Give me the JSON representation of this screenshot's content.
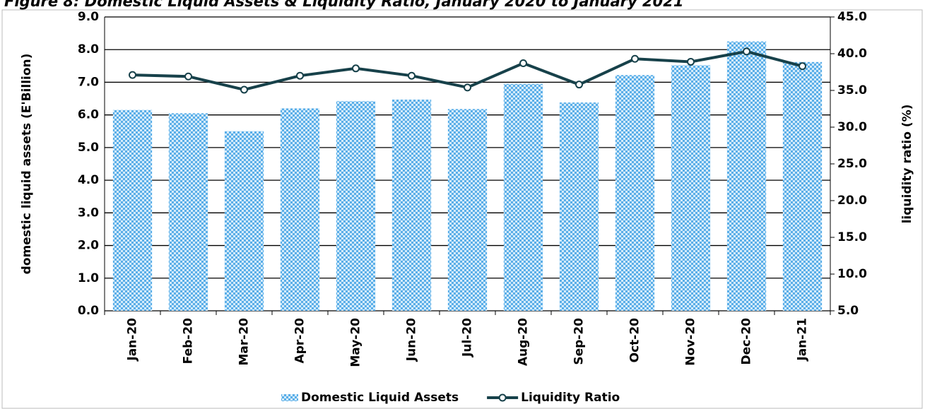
{
  "chart_data": {
    "type": "bar_line",
    "title": "Figure 8: Domestic Liquid Assets & Liquidity Ratio, January 2020 to January 2021",
    "categories": [
      "Jan-20",
      "Feb-20",
      "Mar-20",
      "Apr-20",
      "May-20",
      "Jun-20",
      "Jul-20",
      "Aug-20",
      "Sep-20",
      "Oct-20",
      "Nov-20",
      "Dec-20",
      "Jan-21"
    ],
    "series": [
      {
        "name": "Domestic Liquid Assets",
        "color": "#5aaee8",
        "kind": "bar",
        "values": [
          6.15,
          6.05,
          5.5,
          6.2,
          6.42,
          6.47,
          6.18,
          6.95,
          6.38,
          7.22,
          7.52,
          8.25,
          7.62
        ]
      },
      {
        "name": "Liquidity Ratio",
        "color": "#17414a",
        "kind": "line",
        "axis": "y2",
        "values": [
          37.1,
          36.9,
          35.1,
          37.0,
          38.0,
          37.0,
          35.4,
          38.7,
          35.8,
          39.3,
          38.9,
          40.3,
          38.3
        ]
      }
    ],
    "ylabel": "domestic liquid assets (E'Billion)",
    "y2label": "liquidity ratio (%)",
    "ylim": [
      0,
      9
    ],
    "yticks": [
      {
        "value": 0,
        "label": "0.0"
      },
      {
        "value": 1,
        "label": "1.0"
      },
      {
        "value": 2,
        "label": "2.0"
      },
      {
        "value": 3,
        "label": "3.0"
      },
      {
        "value": 4,
        "label": "4.0"
      },
      {
        "value": 5,
        "label": "5.0"
      },
      {
        "value": 6,
        "label": "6.0"
      },
      {
        "value": 7,
        "label": "7.0"
      },
      {
        "value": 8,
        "label": "8.0"
      },
      {
        "value": 9,
        "label": "9.0"
      }
    ],
    "y2lim": [
      5,
      45
    ],
    "y2ticks": [
      {
        "value": 5,
        "label": "5.0"
      },
      {
        "value": 10,
        "label": "10.0"
      },
      {
        "value": 15,
        "label": "15.0"
      },
      {
        "value": 20,
        "label": "20.0"
      },
      {
        "value": 25,
        "label": "25.0"
      },
      {
        "value": 30,
        "label": "30.0"
      },
      {
        "value": 35,
        "label": "35.0"
      },
      {
        "value": 40,
        "label": "40.0"
      },
      {
        "value": 45,
        "label": "45.0"
      }
    ],
    "grid": true,
    "legend": "bottom"
  }
}
